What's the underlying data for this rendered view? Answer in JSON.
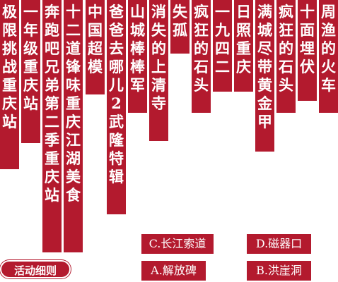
{
  "strips": [
    "极限挑战重庆站",
    "一年级重庆站",
    "奔跑吧兄弟第二季重庆站",
    "十二道锋味重庆江湖美食",
    "中国超模",
    "爸爸去哪儿2武隆特辑",
    "山城棒棒军",
    "消失的上清寺",
    "失孤",
    "疯狂的石头",
    "一九四二",
    "日照重庆",
    "满城尽带黄金甲",
    "疯狂的石头",
    "十面埋伏",
    "周渔的火车"
  ],
  "options": {
    "c": "C.长江索道",
    "d": "D.磁器口",
    "a": "A.解放碑",
    "b": "B.洪崖洞"
  },
  "rules_label": "活动细则",
  "colors": {
    "accent": "#b31a2e",
    "text": "#ffffff"
  }
}
